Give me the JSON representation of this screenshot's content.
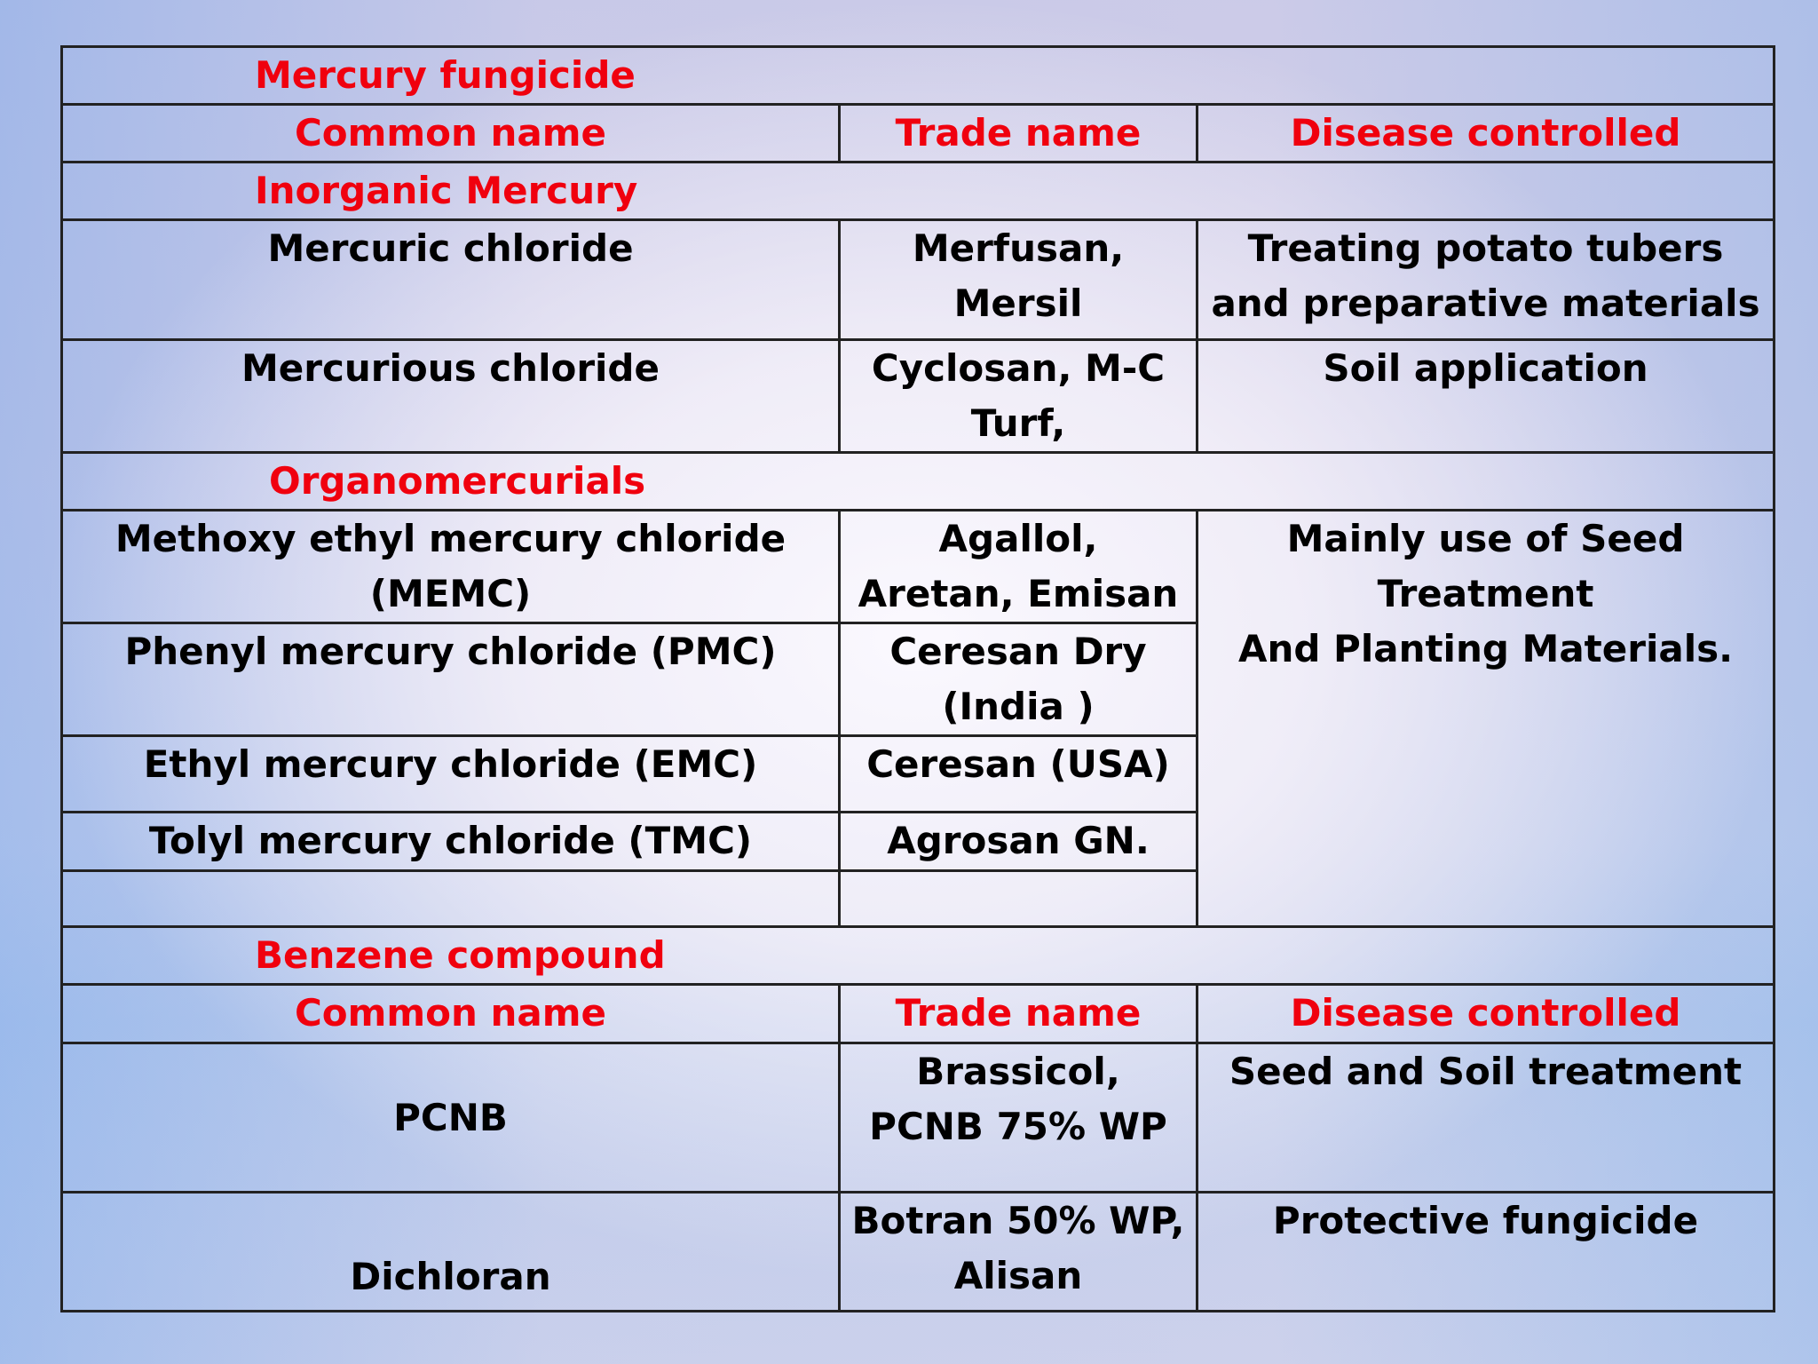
{
  "headers": {
    "common_name": "Common name",
    "trade_name": "Trade name",
    "disease_controlled": "Disease controlled"
  },
  "mercury": {
    "title": "Mercury fungicide",
    "inorganic_title": "Inorganic  Mercury",
    "inorganic_rows": [
      {
        "common": "Mercuric chloride",
        "trade": [
          "Merfusan,",
          "Mersil"
        ],
        "disease": [
          "Treating potato tubers",
          "and preparative materials"
        ]
      },
      {
        "common": "Mercurious chloride",
        "trade": [
          "Cyclosan,  M-C",
          "Turf,"
        ],
        "disease": [
          "Soil application"
        ]
      }
    ],
    "organo_title": "Organomercurials",
    "organo_disease": [
      "Mainly use of Seed",
      "Treatment",
      "And Planting Materials."
    ],
    "organo_rows": [
      {
        "common": [
          "Methoxy ethyl mercury chloride",
          "(MEMC)"
        ],
        "trade": [
          "Agallol,",
          "Aretan, Emisan"
        ]
      },
      {
        "common": [
          "Phenyl mercury chloride (PMC)"
        ],
        "trade": [
          "Ceresan Dry",
          "(India )"
        ]
      },
      {
        "common": [
          "Ethyl mercury chloride (EMC)"
        ],
        "trade": [
          "Ceresan (USA)"
        ]
      },
      {
        "common": [
          "Tolyl mercury chloride (TMC)"
        ],
        "trade": [
          "Agrosan GN."
        ]
      }
    ]
  },
  "benzene": {
    "title": "Benzene compound",
    "rows": [
      {
        "common": "PCNB",
        "trade": [
          "Brassicol,",
          "PCNB 75% WP"
        ],
        "disease": "Seed and Soil treatment"
      },
      {
        "common": "Dichloran",
        "trade": [
          "Botran 50% WP,",
          "Alisan"
        ],
        "disease": "Protective fungicide"
      }
    ]
  }
}
